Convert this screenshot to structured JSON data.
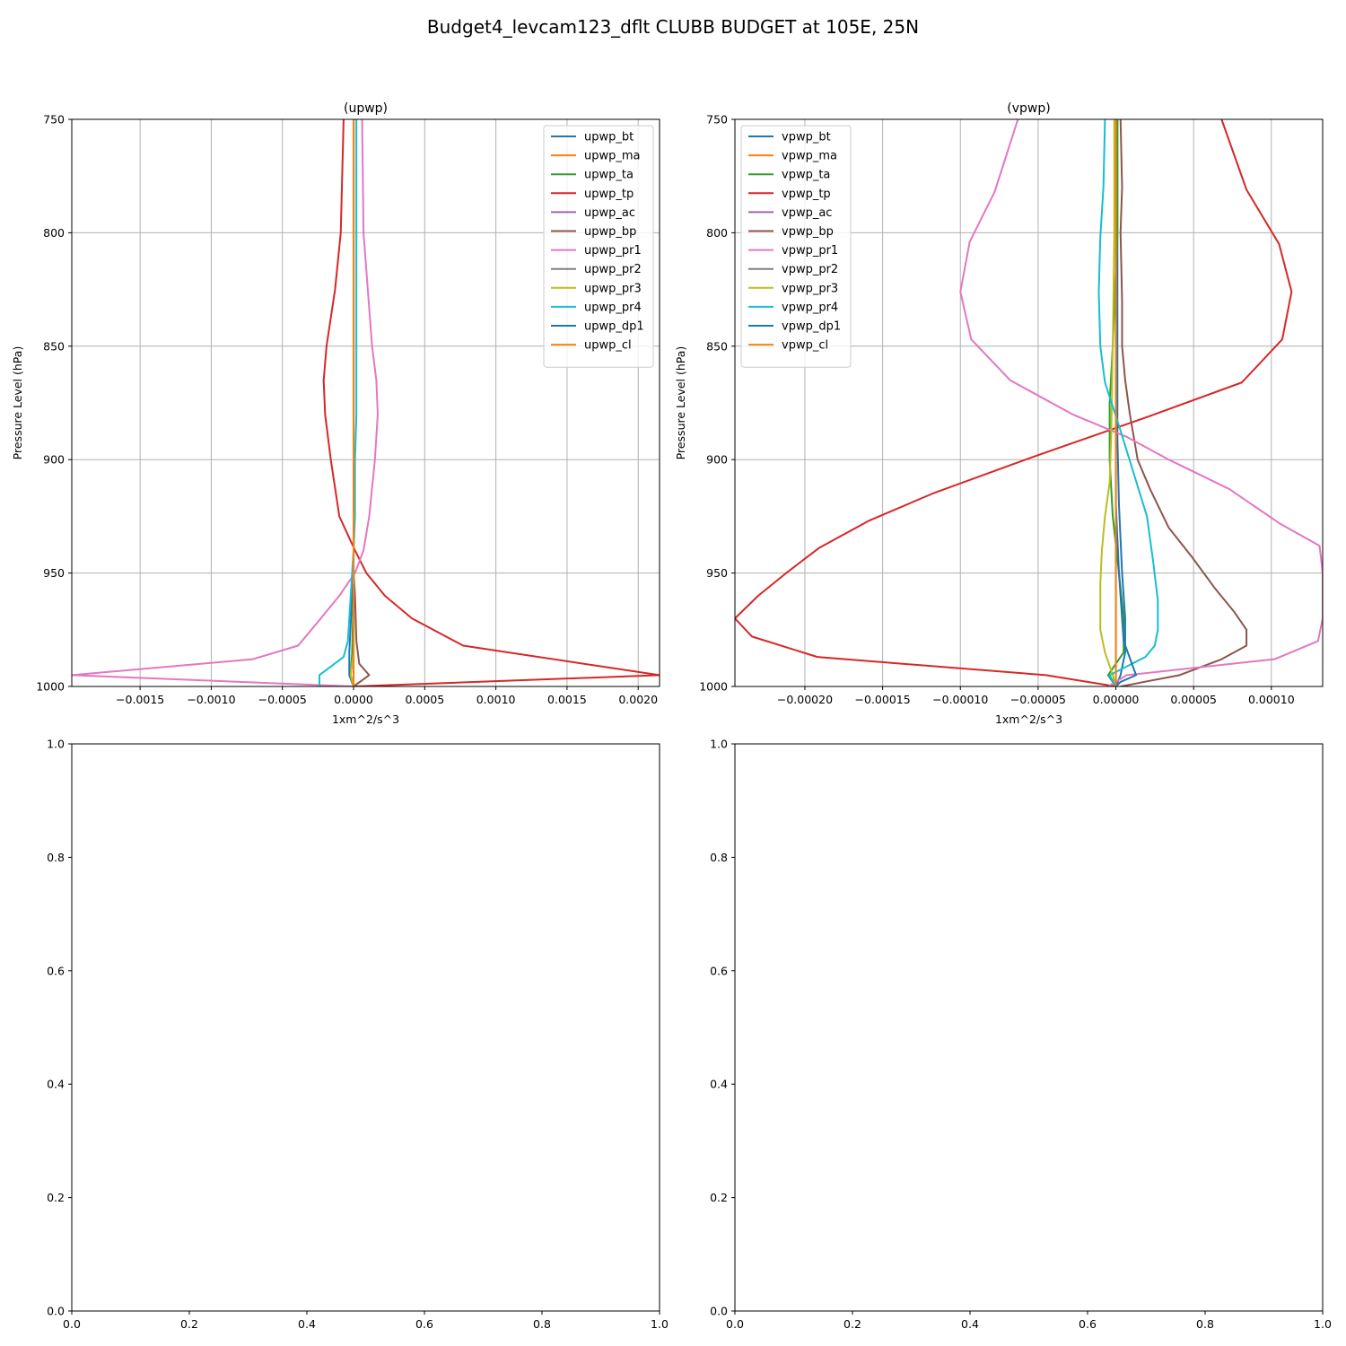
{
  "figure_title": "Budget4_levcam123_dflt CLUBB BUDGET at 105E, 25N",
  "colors": {
    "bt": "#1f77b4",
    "ma": "#ff7f0e",
    "ta": "#2ca02c",
    "tp": "#d62728",
    "ac": "#9467bd",
    "bp": "#8c564b",
    "pr1": "#e377c2",
    "pr2": "#7f7f7f",
    "pr3": "#bcbd22",
    "pr4": "#17becf",
    "dp1": "#1f77b4",
    "cl": "#ff7f0e"
  },
  "chart_data": [
    {
      "type": "line",
      "title": "(upwp)",
      "xlabel": "1xm^2/s^3",
      "ylabel": "Pressure Level (hPa)",
      "xlim": [
        -0.00198,
        0.00215
      ],
      "ylim": [
        1000,
        750
      ],
      "y_inverted": true,
      "grid": true,
      "legend": "upper right",
      "xticks": [
        -0.0015,
        -0.001,
        -0.0005,
        0,
        0.0005,
        0.001,
        0.0015,
        0.002
      ],
      "xtick_labels": [
        "−0.0015",
        "−0.0010",
        "−0.0005",
        "0.0000",
        "0.0005",
        "0.0010",
        "0.0015",
        "0.0020"
      ],
      "yticks": [
        750,
        800,
        850,
        900,
        950,
        1000
      ],
      "ytick_labels": [
        "750",
        "800",
        "850",
        "900",
        "950",
        "1000"
      ],
      "series": [
        {
          "name": "upwp_bt",
          "color_key": "bt",
          "x": [
            0,
            0,
            0,
            0,
            0,
            0,
            0,
            0,
            -1e-05,
            -3e-05,
            -3e-05,
            0
          ],
          "y": [
            750,
            800,
            850,
            880,
            900,
            925,
            940,
            950,
            960,
            985,
            995,
            1000
          ]
        },
        {
          "name": "upwp_ma",
          "color_key": "ma",
          "x": [
            0,
            0,
            0,
            0,
            0,
            0,
            0,
            0,
            0,
            0,
            0,
            0
          ],
          "y": [
            750,
            800,
            850,
            880,
            900,
            925,
            940,
            950,
            960,
            985,
            995,
            1000
          ]
        },
        {
          "name": "upwp_ta",
          "color_key": "ta",
          "x": [
            0,
            0,
            0,
            0,
            0,
            0,
            0,
            0,
            0,
            -1e-05,
            -2e-05,
            0
          ],
          "y": [
            750,
            800,
            850,
            880,
            900,
            925,
            940,
            950,
            960,
            985,
            995,
            1000
          ]
        },
        {
          "name": "upwp_tp",
          "color_key": "tp",
          "x": [
            -7e-05,
            -9e-05,
            -0.00013,
            -0.00019,
            -0.00021,
            -0.0002,
            -0.00016,
            -0.0001,
            1e-05,
            9e-05,
            0.00022,
            0.00041,
            0.00077,
            0.00215,
            0
          ],
          "y": [
            750,
            800,
            825,
            850,
            865,
            880,
            900,
            925,
            940,
            950,
            960,
            970,
            982,
            995,
            1000
          ]
        },
        {
          "name": "upwp_ac",
          "color_key": "ac",
          "x": [
            0,
            0,
            0,
            0,
            0,
            0,
            0,
            0,
            0,
            0,
            0,
            0
          ],
          "y": [
            750,
            800,
            850,
            880,
            900,
            925,
            940,
            950,
            960,
            985,
            995,
            1000
          ]
        },
        {
          "name": "upwp_bp",
          "color_key": "bp",
          "x": [
            0,
            0,
            0,
            0,
            0,
            0,
            0,
            0,
            1e-05,
            2e-05,
            4e-05,
            0.00011,
            0
          ],
          "y": [
            750,
            800,
            850,
            880,
            900,
            925,
            940,
            950,
            960,
            980,
            990,
            995,
            1000
          ]
        },
        {
          "name": "upwp_pr1",
          "color_key": "pr1",
          "x": [
            6e-05,
            7e-05,
            0.0001,
            0.00013,
            0.00016,
            0.00017,
            0.00015,
            0.00011,
            7e-05,
            1e-05,
            -0.0001,
            -0.00023,
            -0.00039,
            -0.00071,
            -0.00198,
            0
          ],
          "y": [
            750,
            800,
            825,
            850,
            865,
            880,
            900,
            925,
            940,
            950,
            960,
            970,
            982,
            988,
            995,
            1000
          ]
        },
        {
          "name": "upwp_pr2",
          "color_key": "pr2",
          "x": [
            0,
            0,
            0,
            0,
            0,
            0,
            0,
            0,
            0,
            0,
            0,
            0
          ],
          "y": [
            750,
            800,
            850,
            880,
            900,
            925,
            940,
            950,
            960,
            985,
            995,
            1000
          ]
        },
        {
          "name": "upwp_pr3",
          "color_key": "pr3",
          "x": [
            0,
            0,
            0,
            0,
            0,
            0,
            0,
            0,
            0,
            0,
            -2e-05,
            0
          ],
          "y": [
            750,
            800,
            850,
            880,
            900,
            925,
            940,
            950,
            960,
            985,
            995,
            1000
          ]
        },
        {
          "name": "upwp_pr4",
          "color_key": "pr4",
          "x": [
            2e-05,
            2e-05,
            2e-05,
            2e-05,
            1e-05,
            1e-05,
            0,
            -1e-05,
            -2e-05,
            -4e-05,
            -7e-05,
            -0.00024,
            -0.00024
          ],
          "y": [
            750,
            800,
            850,
            880,
            900,
            925,
            940,
            950,
            960,
            980,
            987,
            995,
            1000
          ]
        },
        {
          "name": "upwp_dp1",
          "color_key": "dp1",
          "x": [
            0,
            0,
            0,
            0,
            0,
            0,
            0,
            0,
            0,
            0,
            0,
            0
          ],
          "y": [
            750,
            800,
            850,
            880,
            900,
            925,
            940,
            950,
            960,
            985,
            995,
            1000
          ]
        },
        {
          "name": "upwp_cl",
          "color_key": "cl",
          "x": [
            0,
            0,
            0,
            0,
            0,
            0,
            0,
            0,
            0,
            0,
            0,
            0
          ],
          "y": [
            750,
            800,
            850,
            880,
            900,
            925,
            940,
            950,
            960,
            985,
            995,
            1000
          ]
        }
      ]
    },
    {
      "type": "line",
      "title": "(vpwp)",
      "xlabel": "1xm^2/s^3",
      "ylabel": "Pressure Level (hPa)",
      "xlim": [
        -0.000245,
        0.000133
      ],
      "ylim": [
        1000,
        750
      ],
      "y_inverted": true,
      "grid": true,
      "legend": "upper left",
      "xticks": [
        -0.0002,
        -0.00015,
        -0.0001,
        -5e-05,
        0,
        5e-05,
        0.0001
      ],
      "xtick_labels": [
        "−0.00020",
        "−0.00015",
        "−0.00010",
        "−0.00005",
        "0.00000",
        "0.00005",
        "0.00010"
      ],
      "yticks": [
        750,
        800,
        850,
        900,
        950,
        1000
      ],
      "ytick_labels": [
        "750",
        "800",
        "850",
        "900",
        "950",
        "1000"
      ],
      "series": [
        {
          "name": "vpwp_bt",
          "color_key": "bt",
          "x": [
            1e-06,
            1e-06,
            1e-06,
            1e-06,
            2e-06,
            4e-06,
            6e-06,
            6e-06,
            3e-06,
            0
          ],
          "y": [
            750,
            800,
            850,
            890,
            920,
            950,
            970,
            985,
            995,
            1000
          ]
        },
        {
          "name": "vpwp_ma",
          "color_key": "ma",
          "x": [
            0,
            0,
            0,
            0,
            0,
            0,
            0,
            0,
            0,
            0
          ],
          "y": [
            750,
            800,
            850,
            890,
            920,
            950,
            970,
            985,
            995,
            1000
          ]
        },
        {
          "name": "vpwp_ta",
          "color_key": "ta",
          "x": [
            1e-06,
            1e-06,
            -2e-06,
            -4e-06,
            -4e-06,
            -2e-06,
            2e-06,
            5e-06,
            5e-06,
            -5e-06,
            0
          ],
          "y": [
            750,
            800,
            850,
            875,
            900,
            925,
            950,
            970,
            985,
            995,
            1000
          ]
        },
        {
          "name": "vpwp_tp",
          "color_key": "tp",
          "x": [
            6.8e-05,
            8.4e-05,
            0.000105,
            0.000113,
            0.000107,
            8.1e-05,
            2.1e-05,
            -5e-05,
            -0.000118,
            -0.000159,
            -0.000191,
            -0.000212,
            -0.00023,
            -0.000245,
            -0.000234,
            -0.000192,
            -4.5e-05,
            0
          ],
          "y": [
            750,
            781,
            805,
            826,
            847,
            866,
            881,
            898,
            915,
            927,
            939,
            950,
            960,
            970,
            978,
            987,
            995,
            1000
          ]
        },
        {
          "name": "vpwp_ac",
          "color_key": "ac",
          "x": [
            0,
            0,
            0,
            0,
            0,
            0,
            0,
            0,
            0,
            0
          ],
          "y": [
            750,
            800,
            850,
            890,
            920,
            950,
            970,
            985,
            995,
            1000
          ]
        },
        {
          "name": "vpwp_bp",
          "color_key": "bp",
          "x": [
            3e-06,
            4e-06,
            3e-06,
            4e-06,
            4e-06,
            6e-06,
            9e-06,
            1.4e-05,
            2.2e-05,
            3.4e-05,
            4.9e-05,
            6.4e-05,
            7.6e-05,
            8.4e-05,
            8.4e-05,
            6.8e-05,
            4.1e-05,
            3e-06
          ],
          "y": [
            750,
            780,
            800,
            830,
            850,
            865,
            880,
            900,
            913,
            930,
            943,
            957,
            967,
            975,
            982,
            988,
            995,
            1000
          ]
        },
        {
          "name": "vpwp_pr1",
          "color_key": "pr1",
          "x": [
            -6.3e-05,
            -7.8e-05,
            -9.4e-05,
            -0.0001,
            -9.3e-05,
            -6.8e-05,
            -2.8e-05,
            7e-06,
            3.4e-05,
            7.3e-05,
            0.000105,
            0.000131,
            0.000133,
            0.000133,
            0.00013,
            0.000102,
            7e-06,
            -5e-06
          ],
          "y": [
            750,
            782,
            804,
            826,
            847,
            865,
            880,
            890,
            900,
            913,
            928,
            938,
            950,
            970,
            980,
            988,
            995,
            1000
          ]
        },
        {
          "name": "vpwp_pr2",
          "color_key": "pr2",
          "x": [
            0,
            0,
            0,
            0,
            0,
            0,
            0,
            0,
            0,
            0
          ],
          "y": [
            750,
            800,
            850,
            890,
            920,
            950,
            970,
            985,
            995,
            1000
          ]
        },
        {
          "name": "vpwp_pr3",
          "color_key": "pr3",
          "x": [
            -1e-06,
            -1e-06,
            -2e-06,
            -3e-06,
            -4e-06,
            -7e-06,
            -9e-06,
            -1e-05,
            -1e-05,
            -7e-06,
            -2e-06,
            0
          ],
          "y": [
            750,
            800,
            850,
            890,
            910,
            925,
            940,
            955,
            975,
            985,
            995,
            1000
          ]
        },
        {
          "name": "vpwp_pr4",
          "color_key": "pr4",
          "x": [
            -7e-06,
            -8e-06,
            -1e-05,
            -1.1e-05,
            -1e-05,
            -7e-06,
            2e-06,
            2e-05,
            2.4e-05,
            2.7e-05,
            2.7e-05,
            2.5e-05,
            1.9e-05,
            -4e-06,
            0
          ],
          "y": [
            750,
            780,
            802,
            826,
            850,
            866,
            885,
            925,
            945,
            962,
            975,
            982,
            987,
            995,
            1000
          ]
        },
        {
          "name": "vpwp_dp1",
          "color_key": "dp1",
          "x": [
            0,
            0,
            0,
            0,
            0,
            2e-06,
            5e-06,
            1.3e-05,
            3e-06,
            0
          ],
          "y": [
            750,
            800,
            850,
            890,
            920,
            950,
            980,
            995,
            998,
            1000
          ]
        },
        {
          "name": "vpwp_cl",
          "color_key": "cl",
          "x": [
            0,
            0,
            0,
            0,
            0,
            0,
            0,
            0,
            0,
            0
          ],
          "y": [
            750,
            800,
            850,
            890,
            920,
            950,
            970,
            985,
            995,
            1000
          ]
        }
      ]
    },
    {
      "type": "line",
      "title": "",
      "xlim": [
        0,
        1
      ],
      "ylim": [
        0,
        1
      ],
      "grid": false,
      "xticks": [
        0,
        0.2,
        0.4,
        0.6,
        0.8,
        1.0
      ],
      "xtick_labels": [
        "0.0",
        "0.2",
        "0.4",
        "0.6",
        "0.8",
        "1.0"
      ],
      "yticks": [
        0,
        0.2,
        0.4,
        0.6,
        0.8,
        1.0
      ],
      "ytick_labels": [
        "0.0",
        "0.2",
        "0.4",
        "0.6",
        "0.8",
        "1.0"
      ],
      "series": []
    },
    {
      "type": "line",
      "title": "",
      "xlim": [
        0,
        1
      ],
      "ylim": [
        0,
        1
      ],
      "grid": false,
      "xticks": [
        0,
        0.2,
        0.4,
        0.6,
        0.8,
        1.0
      ],
      "xtick_labels": [
        "0.0",
        "0.2",
        "0.4",
        "0.6",
        "0.8",
        "1.0"
      ],
      "yticks": [
        0,
        0.2,
        0.4,
        0.6,
        0.8,
        1.0
      ],
      "ytick_labels": [
        "0.0",
        "0.2",
        "0.4",
        "0.6",
        "0.8",
        "1.0"
      ],
      "series": []
    }
  ]
}
